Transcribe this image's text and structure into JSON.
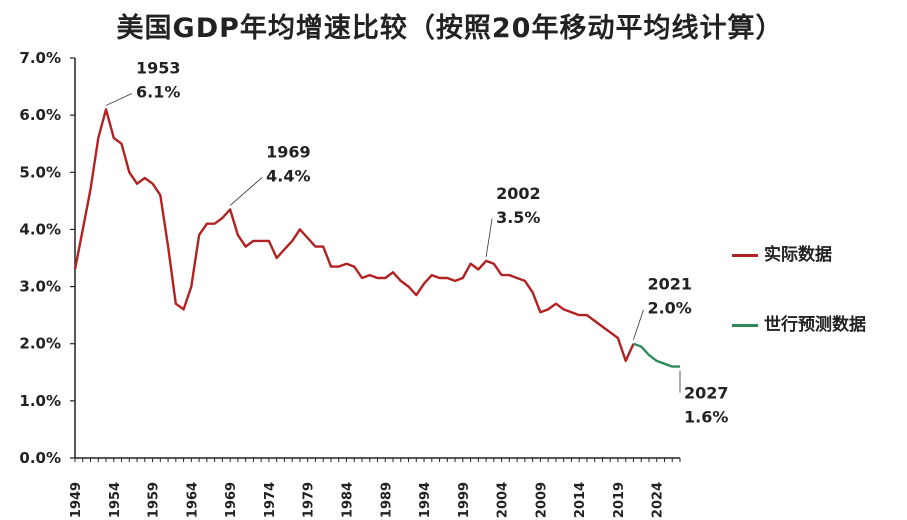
{
  "chart_data": {
    "type": "line",
    "title": "美国GDP年均增速比较（按照20年移动平均线计算）",
    "xlabel": "",
    "ylabel": "",
    "xlim": [
      1949,
      2027
    ],
    "ylim": [
      0,
      7
    ],
    "y_ticks": [
      "0.0%",
      "1.0%",
      "2.0%",
      "3.0%",
      "4.0%",
      "5.0%",
      "6.0%",
      "7.0%"
    ],
    "x_ticks": [
      "1949",
      "1954",
      "1959",
      "1964",
      "1969",
      "1974",
      "1979",
      "1984",
      "1989",
      "1994",
      "1999",
      "2004",
      "2009",
      "2014",
      "2019",
      "2024"
    ],
    "grid": false,
    "legend_position": "right",
    "series": [
      {
        "name": "实际数据",
        "color": "#b22222",
        "points": [
          [
            1949,
            3.3
          ],
          [
            1950,
            4.0
          ],
          [
            1951,
            4.7
          ],
          [
            1952,
            5.6
          ],
          [
            1953,
            6.1
          ],
          [
            1954,
            5.6
          ],
          [
            1955,
            5.5
          ],
          [
            1956,
            5.0
          ],
          [
            1957,
            4.8
          ],
          [
            1958,
            4.9
          ],
          [
            1959,
            4.8
          ],
          [
            1960,
            4.6
          ],
          [
            1961,
            3.7
          ],
          [
            1962,
            2.7
          ],
          [
            1963,
            2.6
          ],
          [
            1964,
            3.0
          ],
          [
            1965,
            3.9
          ],
          [
            1966,
            4.1
          ],
          [
            1967,
            4.1
          ],
          [
            1968,
            4.2
          ],
          [
            1969,
            4.35
          ],
          [
            1970,
            3.9
          ],
          [
            1971,
            3.7
          ],
          [
            1972,
            3.8
          ],
          [
            1973,
            3.8
          ],
          [
            1974,
            3.8
          ],
          [
            1975,
            3.5
          ],
          [
            1976,
            3.65
          ],
          [
            1977,
            3.8
          ],
          [
            1978,
            4.0
          ],
          [
            1979,
            3.85
          ],
          [
            1980,
            3.7
          ],
          [
            1981,
            3.7
          ],
          [
            1982,
            3.35
          ],
          [
            1983,
            3.35
          ],
          [
            1984,
            3.4
          ],
          [
            1985,
            3.35
          ],
          [
            1986,
            3.15
          ],
          [
            1987,
            3.2
          ],
          [
            1988,
            3.15
          ],
          [
            1989,
            3.15
          ],
          [
            1990,
            3.25
          ],
          [
            1991,
            3.1
          ],
          [
            1992,
            3.0
          ],
          [
            1993,
            2.85
          ],
          [
            1994,
            3.05
          ],
          [
            1995,
            3.2
          ],
          [
            1996,
            3.15
          ],
          [
            1997,
            3.15
          ],
          [
            1998,
            3.1
          ],
          [
            1999,
            3.15
          ],
          [
            2000,
            3.4
          ],
          [
            2001,
            3.3
          ],
          [
            2002,
            3.45
          ],
          [
            2003,
            3.4
          ],
          [
            2004,
            3.2
          ],
          [
            2005,
            3.2
          ],
          [
            2006,
            3.15
          ],
          [
            2007,
            3.1
          ],
          [
            2008,
            2.9
          ],
          [
            2009,
            2.55
          ],
          [
            2010,
            2.6
          ],
          [
            2011,
            2.7
          ],
          [
            2012,
            2.6
          ],
          [
            2013,
            2.55
          ],
          [
            2014,
            2.5
          ],
          [
            2015,
            2.5
          ],
          [
            2016,
            2.4
          ],
          [
            2017,
            2.3
          ],
          [
            2018,
            2.2
          ],
          [
            2019,
            2.1
          ],
          [
            2020,
            1.7
          ],
          [
            2021,
            2.0
          ]
        ]
      },
      {
        "name": "世行预测数据",
        "color": "#2e8b57",
        "points": [
          [
            2021,
            2.0
          ],
          [
            2022,
            1.95
          ],
          [
            2023,
            1.8
          ],
          [
            2024,
            1.7
          ],
          [
            2025,
            1.65
          ],
          [
            2026,
            1.6
          ],
          [
            2027,
            1.6
          ]
        ]
      }
    ],
    "annotations": [
      {
        "year_label": "1953",
        "value_label": "6.1%",
        "x": 1953,
        "y": 6.1
      },
      {
        "year_label": "1969",
        "value_label": "4.4%",
        "x": 1969,
        "y": 4.35
      },
      {
        "year_label": "2002",
        "value_label": "3.5%",
        "x": 2002,
        "y": 3.45
      },
      {
        "year_label": "2021",
        "value_label": "2.0%",
        "x": 2021,
        "y": 2.0
      },
      {
        "year_label": "2027",
        "value_label": "1.6%",
        "x": 2027,
        "y": 1.6
      }
    ]
  }
}
